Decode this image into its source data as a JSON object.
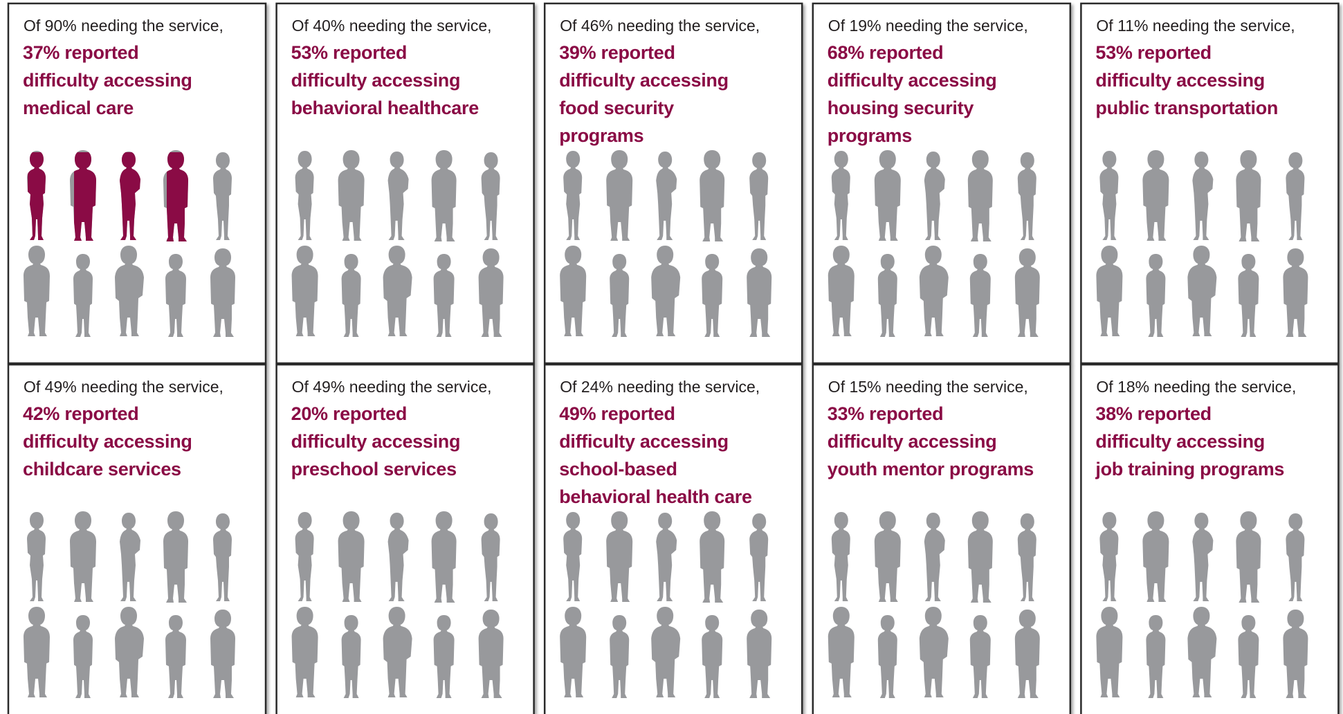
{
  "chart_data": [
    {
      "type": "pictograph",
      "subtitle": "Of 90% needing the service,",
      "title": [
        "37% reported",
        "difficulty accessing",
        "medical care"
      ],
      "value": 37,
      "color": "#8a0b45",
      "empty_color": "#98999c"
    },
    {
      "type": "pictograph",
      "subtitle": "Of 40% needing the service,",
      "title": [
        "53% reported",
        "difficulty accessing",
        "behavioral healthcare"
      ],
      "value": 53,
      "color": "#8a0b45",
      "empty_color": "#98999c"
    },
    {
      "type": "pictograph",
      "subtitle": "Of 46% needing the service,",
      "title": [
        "39% reported",
        "difficulty accessing",
        "food security",
        "programs"
      ],
      "value": 39,
      "color": "#8a0b45",
      "empty_color": "#98999c"
    },
    {
      "type": "pictograph",
      "subtitle": "Of 19% needing the service,",
      "title": [
        "68% reported",
        "difficulty accessing",
        "housing security",
        "programs"
      ],
      "value": 68,
      "color": "#8a0b45",
      "empty_color": "#98999c"
    },
    {
      "type": "pictograph",
      "subtitle": "Of 11% needing the service,",
      "title": [
        "53% reported",
        "difficulty accessing",
        "public transportation"
      ],
      "value": 53,
      "color": "#8a0b45",
      "empty_color": "#98999c"
    },
    {
      "type": "pictograph",
      "subtitle": "Of 49% needing the service,",
      "title": [
        "42% reported",
        "difficulty accessing",
        "childcare services"
      ],
      "value": 42,
      "color": "#8a0b45",
      "empty_color": "#98999c"
    },
    {
      "type": "pictograph",
      "subtitle": "Of 49% needing the service,",
      "title": [
        "20% reported",
        "difficulty accessing",
        "preschool services"
      ],
      "value": 20,
      "color": "#8a0b45",
      "empty_color": "#98999c"
    },
    {
      "type": "pictograph",
      "subtitle": "Of 24% needing the service,",
      "title": [
        "49% reported",
        "difficulty accessing",
        "school-based",
        "behavioral health care"
      ],
      "value": 49,
      "color": "#8a0b45",
      "empty_color": "#98999c"
    },
    {
      "type": "pictograph",
      "subtitle": "Of 15% needing the service,",
      "title": [
        "33% reported",
        "difficulty accessing",
        "youth mentor programs"
      ],
      "value": 33,
      "color": "#8a0b45",
      "empty_color": "#98999c"
    },
    {
      "type": "pictograph",
      "subtitle": "Of 18% needing the service,",
      "title": [
        "38% reported",
        "difficulty accessing",
        "job training programs"
      ],
      "value": 38,
      "color": "#8a0b45",
      "empty_color": "#98999c"
    }
  ]
}
